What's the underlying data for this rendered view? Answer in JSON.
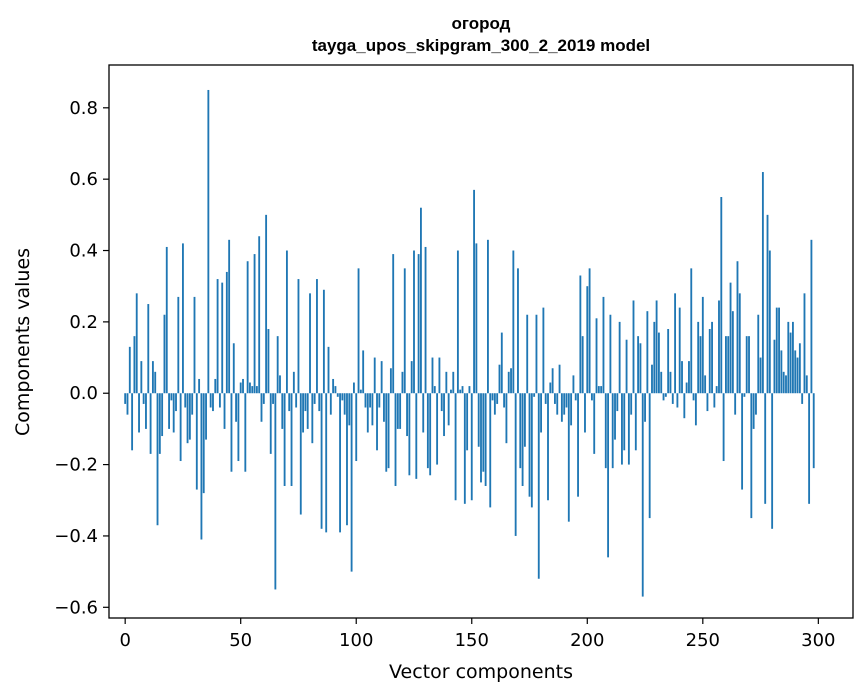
{
  "chart_data": {
    "type": "bar",
    "title": "огород",
    "subtitle": "tayga_upos_skipgram_300_2_2019 model",
    "xlabel": "Vector components",
    "ylabel": "Components values",
    "xlim": [
      -7,
      315
    ],
    "ylim": [
      -0.63,
      0.92
    ],
    "xticks": [
      0,
      50,
      100,
      150,
      200,
      250,
      300
    ],
    "xtick_labels": [
      "0",
      "50",
      "100",
      "150",
      "200",
      "250",
      "300"
    ],
    "yticks": [
      -0.6,
      -0.4,
      -0.2,
      0.0,
      0.2,
      0.4,
      0.6,
      0.8
    ],
    "ytick_labels": [
      "−0.6",
      "−0.4",
      "−0.2",
      "0.0",
      "0.2",
      "0.4",
      "0.6",
      "0.8"
    ],
    "bar_color": "#1f77b4",
    "values": [
      -0.03,
      -0.06,
      0.13,
      -0.16,
      0.16,
      0.28,
      -0.11,
      0.09,
      -0.03,
      -0.1,
      0.25,
      -0.17,
      0.09,
      0.06,
      -0.37,
      -0.17,
      -0.12,
      0.22,
      0.41,
      -0.1,
      -0.02,
      -0.11,
      -0.05,
      0.27,
      -0.19,
      0.42,
      -0.04,
      -0.14,
      -0.13,
      -0.06,
      0.27,
      -0.27,
      0.04,
      -0.41,
      -0.28,
      -0.13,
      0.85,
      -0.04,
      -0.05,
      0.04,
      0.32,
      -0.04,
      0.31,
      -0.1,
      0.34,
      0.43,
      -0.22,
      0.14,
      -0.08,
      -0.19,
      0.03,
      0.04,
      -0.22,
      0.37,
      0.03,
      0.02,
      0.39,
      0.02,
      0.44,
      -0.08,
      -0.03,
      0.5,
      0.18,
      -0.17,
      -0.03,
      -0.55,
      0.16,
      0.05,
      -0.1,
      -0.26,
      0.4,
      -0.05,
      -0.26,
      0.06,
      -0.04,
      0.32,
      -0.34,
      -0.11,
      -0.05,
      -0.1,
      0.28,
      -0.14,
      -0.03,
      0.32,
      -0.05,
      -0.38,
      0.29,
      -0.39,
      0.13,
      -0.06,
      0.04,
      0.02,
      -0.01,
      -0.39,
      -0.02,
      -0.06,
      -0.37,
      -0.09,
      -0.5,
      0.03,
      -0.19,
      0.35,
      0.01,
      0.12,
      -0.04,
      -0.11,
      -0.04,
      -0.09,
      0.1,
      -0.16,
      -0.04,
      0.09,
      -0.08,
      -0.22,
      -0.21,
      0.07,
      0.39,
      -0.26,
      -0.1,
      -0.1,
      0.06,
      0.35,
      -0.12,
      -0.23,
      0.09,
      0.4,
      -0.24,
      0.39,
      0.52,
      -0.11,
      0.41,
      -0.21,
      -0.23,
      0.1,
      0.02,
      -0.2,
      0.1,
      -0.05,
      -0.12,
      0.06,
      -0.09,
      0.01,
      0.06,
      -0.3,
      0.4,
      0.01,
      0.02,
      -0.31,
      -0.16,
      0.02,
      -0.3,
      0.57,
      0.42,
      -0.15,
      -0.25,
      -0.22,
      -0.26,
      0.43,
      -0.32,
      -0.02,
      -0.06,
      -0.03,
      0.08,
      0.17,
      -0.04,
      -0.14,
      0.06,
      0.07,
      0.4,
      -0.4,
      0.35,
      -0.21,
      -0.26,
      -0.15,
      0.22,
      -0.29,
      -0.32,
      -0.01,
      0.22,
      -0.52,
      -0.11,
      0.24,
      -0.03,
      -0.3,
      0.03,
      0.07,
      -0.03,
      -0.06,
      0.08,
      -0.08,
      -0.06,
      -0.04,
      -0.36,
      -0.09,
      0.05,
      -0.02,
      -0.29,
      0.33,
      0.16,
      -0.11,
      0.3,
      0.35,
      -0.02,
      -0.17,
      0.21,
      0.02,
      0.02,
      0.27,
      -0.21,
      -0.46,
      0.22,
      -0.21,
      -0.13,
      -0.05,
      0.2,
      -0.2,
      -0.16,
      0.15,
      -0.2,
      -0.06,
      0.26,
      -0.16,
      0.16,
      0.14,
      -0.57,
      -0.08,
      0.23,
      -0.35,
      0.08,
      0.2,
      0.26,
      0.17,
      0.06,
      -0.02,
      -0.01,
      0.18,
      0.06,
      -0.03,
      0.28,
      -0.04,
      0.24,
      0.09,
      -0.07,
      0.03,
      0.09,
      0.35,
      -0.02,
      -0.09,
      0.2,
      0.16,
      0.27,
      0.05,
      -0.05,
      0.18,
      0.2,
      -0.04,
      0.02,
      0.26,
      0.55,
      -0.19,
      0.16,
      0.16,
      0.31,
      0.23,
      -0.06,
      0.37,
      0.28,
      -0.27,
      -0.01,
      0.16,
      0.16,
      -0.35,
      -0.1,
      -0.06,
      0.22,
      0.1,
      0.62,
      -0.31,
      0.5,
      0.4,
      -0.38,
      0.15,
      0.24,
      0.24,
      0.12,
      0.06,
      0.05,
      0.2,
      0.17,
      0.2,
      0.12,
      0.1,
      0.14,
      -0.03,
      0.28,
      0.05,
      -0.31,
      0.43,
      -0.21
    ]
  }
}
